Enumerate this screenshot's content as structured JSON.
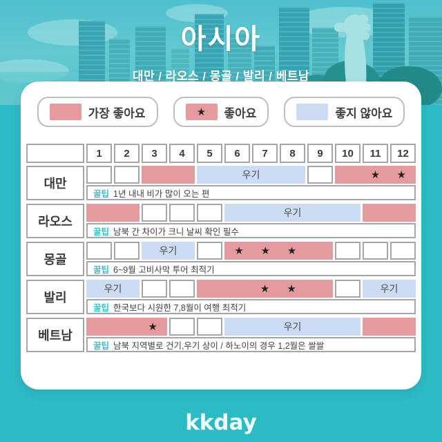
{
  "header": {
    "title": "아시아",
    "subtitle": "대만 / 라오스 / 몽골 / 발리 / 베트남"
  },
  "legend": [
    {
      "type": "best",
      "label": "가장 좋아요"
    },
    {
      "type": "star",
      "label": "좋아요"
    },
    {
      "type": "bad",
      "label": "좋지 않아요"
    }
  ],
  "table": {
    "months": [
      "1",
      "2",
      "3",
      "4",
      "5",
      "6",
      "7",
      "8",
      "9",
      "10",
      "11",
      "12"
    ],
    "tip_label": "꿀팁",
    "rainy_label": "우기",
    "rows": [
      {
        "name": "대만",
        "cells": [
          {
            "span": 1,
            "type": "plain"
          },
          {
            "span": 1,
            "type": "plain"
          },
          {
            "span": 2,
            "type": "best"
          },
          {
            "span": 4,
            "type": "bad",
            "label": "우기"
          },
          {
            "span": 1,
            "type": "plain"
          },
          {
            "span": 3,
            "type": "best",
            "stars": [
              1,
              2
            ]
          }
        ],
        "tip": "1년 내내 비가 많이 오는 편"
      },
      {
        "name": "라오스",
        "cells": [
          {
            "span": 2,
            "type": "best"
          },
          {
            "span": 1,
            "type": "plain"
          },
          {
            "span": 1,
            "type": "plain"
          },
          {
            "span": 1,
            "type": "plain"
          },
          {
            "span": 5,
            "type": "bad",
            "label": "우기"
          },
          {
            "span": 2,
            "type": "best"
          }
        ],
        "tip": "남북 간 차이가 크니 날씨 확인 필수"
      },
      {
        "name": "몽골",
        "cells": [
          {
            "span": 1,
            "type": "plain"
          },
          {
            "span": 1,
            "type": "plain"
          },
          {
            "span": 2,
            "type": "bad",
            "label": "우기"
          },
          {
            "span": 1,
            "type": "plain"
          },
          {
            "span": 4,
            "type": "best",
            "stars": [
              0,
              1,
              2
            ]
          },
          {
            "span": 1,
            "type": "plain"
          },
          {
            "span": 1,
            "type": "plain"
          },
          {
            "span": 1,
            "type": "plain"
          }
        ],
        "tip": "6~9월 고비사막 투어 최적기"
      },
      {
        "name": "발리",
        "cells": [
          {
            "span": 2,
            "type": "bad",
            "label": "우기"
          },
          {
            "span": 1,
            "type": "plain"
          },
          {
            "span": 1,
            "type": "plain"
          },
          {
            "span": 5,
            "type": "best",
            "stars": [
              2,
              3
            ]
          },
          {
            "span": 1,
            "type": "plain"
          },
          {
            "span": 2,
            "type": "bad",
            "label": "우기"
          }
        ],
        "tip": "한국보다 시원한 7,8월이 여행 최적기"
      },
      {
        "name": "베트남",
        "cells": [
          {
            "span": 3,
            "type": "best",
            "stars": [
              2
            ]
          },
          {
            "span": 1,
            "type": "plain"
          },
          {
            "span": 1,
            "type": "plain"
          },
          {
            "span": 5,
            "type": "bad",
            "label": "우기"
          },
          {
            "span": 2,
            "type": "best"
          }
        ],
        "tip": "남북 지역별로 건기,우기 상이 / 하노이의 경우 1,2월은 쌀쌀"
      }
    ]
  },
  "chart_data": {
    "type": "table",
    "title": "아시아",
    "categories": [
      1,
      2,
      3,
      4,
      5,
      6,
      7,
      8,
      9,
      10,
      11,
      12
    ],
    "legend": [
      "가장 좋아요",
      "좋아요",
      "좋지 않아요"
    ],
    "legend_position": "top",
    "series": [
      {
        "name": "대만",
        "best_months": [
          3,
          4,
          10,
          11,
          12
        ],
        "star_months": [
          11,
          12
        ],
        "rainy_months": [
          5,
          6,
          7,
          8
        ],
        "tip": "1년 내내 비가 많이 오는 편"
      },
      {
        "name": "라오스",
        "best_months": [
          1,
          2,
          11,
          12
        ],
        "star_months": [],
        "rainy_months": [
          6,
          7,
          8,
          9,
          10
        ],
        "tip": "남북 간 차이가 크니 날씨 확인 필수"
      },
      {
        "name": "몽골",
        "best_months": [
          6,
          7,
          8,
          9
        ],
        "star_months": [
          6,
          7,
          8
        ],
        "rainy_months": [
          3,
          4
        ],
        "tip": "6~9월 고비사막 투어 최적기"
      },
      {
        "name": "발리",
        "best_months": [
          5,
          6,
          7,
          8,
          9
        ],
        "star_months": [
          7,
          8
        ],
        "rainy_months": [
          1,
          2,
          11,
          12
        ],
        "tip": "한국보다 시원한 7,8월이 여행 최적기"
      },
      {
        "name": "베트남",
        "best_months": [
          1,
          2,
          3,
          11,
          12
        ],
        "star_months": [
          3
        ],
        "rainy_months": [
          6,
          7,
          8,
          9,
          10
        ],
        "tip": "남북 지역별로 건기,우기 상이 / 하노이의 경우 1,2월은 쌀쌀"
      }
    ]
  },
  "footer": {
    "logo": "kkday"
  },
  "colors": {
    "teal_background": "#2cbac5",
    "best": "#e59a9e",
    "bad": "#ccdcf5",
    "star": "#222222",
    "grid_border": "#a5a5a5",
    "tip_tag": "#3cc3cb"
  }
}
